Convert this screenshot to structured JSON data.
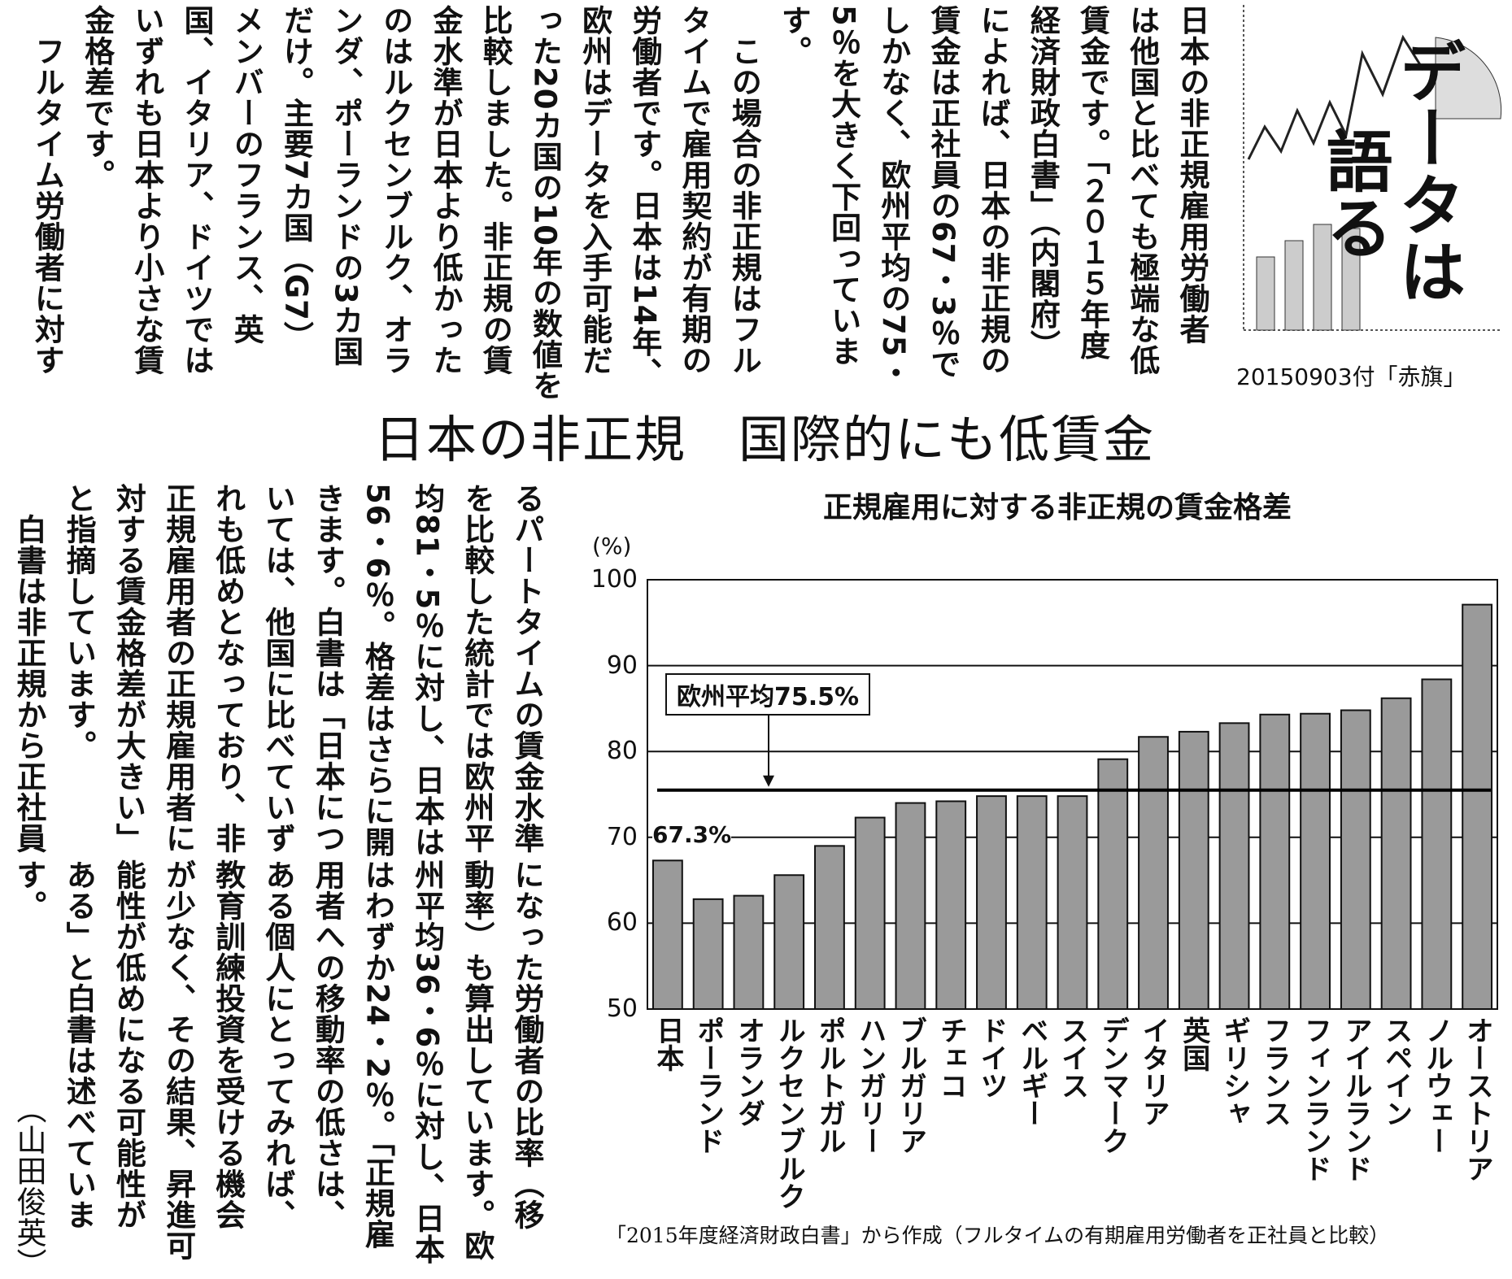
{
  "logo": {
    "line1": "データは",
    "line2": "語る"
  },
  "caption": "20150903付「赤旗」",
  "headline": "日本の非正規　国際的にも低賃金",
  "article": {
    "top_columns": [
      "日本の非正規雇用労働者",
      "は他国と比べても極端な低",
      "賃金です。「２０１５年度",
      "経済財政白書」（内閣府）",
      "によれば、日本の非正規の",
      "賃金は正社員の67・3％で",
      "しかなく、欧州平均の75・",
      "5％を大きく下回っていま",
      "す。",
      "　この場合の非正規はフル",
      "タイムで雇用契約が有期の",
      "労働者です。日本は14年、",
      "欧州はデータを入手可能だ",
      "った20カ国の10年の数値を",
      "比較しました。非正規の賃",
      "金水準が日本より低かった",
      "のはルクセンブルク、オラ",
      "ンダ、ポーランドの3カ国",
      "だけ。主要7カ国（G7）",
      "メンバーのフランス、英",
      "国、イタリア、ドイツでは",
      "いずれも日本より小さな賃",
      "金格差です。",
      "　フルタイム労働者に対す"
    ],
    "bottom_upper_columns": [
      "るパートタイムの賃金水準",
      "を比較した統計では欧州平",
      "均81・5％に対し、日本は",
      "56・6％。格差はさらに開",
      "きます。白書は「日本につ",
      "いては、他国に比べていず",
      "れも低めとなっており、非",
      "正規雇用者の正規雇用者に",
      "対する賃金格差が大きい」",
      "と指摘しています。",
      "　白書は非正規から正社員"
    ],
    "bottom_lower_columns": [
      "になった労働者の比率（移",
      "動率）も算出しています。欧",
      "州平均36・6％に対し、日本",
      "はわずか24・2％。「正規雇",
      "用者への移動率の低さは、",
      "ある個人にとってみれば、",
      "教育訓練投資を受ける機会",
      "が少なく、その結果、昇進可",
      "能性が低めになる可能性が",
      "ある」と白書は述べていま",
      "す。"
    ],
    "byline": "（山田俊英）"
  },
  "chart_data": {
    "type": "bar",
    "title": "正規雇用に対する非正規の賃金格差",
    "ylabel": "(%)",
    "ylim": [
      50,
      100
    ],
    "yticks": [
      "100",
      "90",
      "80",
      "70",
      "60",
      "50"
    ],
    "grid": true,
    "categories": [
      "日本",
      "ポーランド",
      "オランダ",
      "ルクセンブルク",
      "ポルトガル",
      "ハンガリー",
      "ブルガリア",
      "チェコ",
      "ドイツ",
      "ベルギー",
      "スイス",
      "デンマーク",
      "イタリア",
      "英国",
      "ギリシャ",
      "フランス",
      "フィンランド",
      "アイルランド",
      "スペイン",
      "ノルウェー",
      "オーストリア"
    ],
    "values": [
      67.3,
      62.8,
      63.2,
      65.6,
      69.0,
      72.3,
      74.0,
      74.2,
      74.8,
      74.8,
      74.8,
      79.1,
      81.7,
      82.3,
      83.3,
      84.3,
      84.4,
      84.8,
      86.2,
      88.4,
      97.1
    ],
    "reference_line": {
      "value": 75.5,
      "label": "欧州平均75.5%"
    },
    "annotation": "67.3%",
    "source": "「2015年度経済財政白書」から作成（フルタイムの有期雇用労働者を正社員と比較）",
    "bar_color": "#9a9a9a"
  }
}
